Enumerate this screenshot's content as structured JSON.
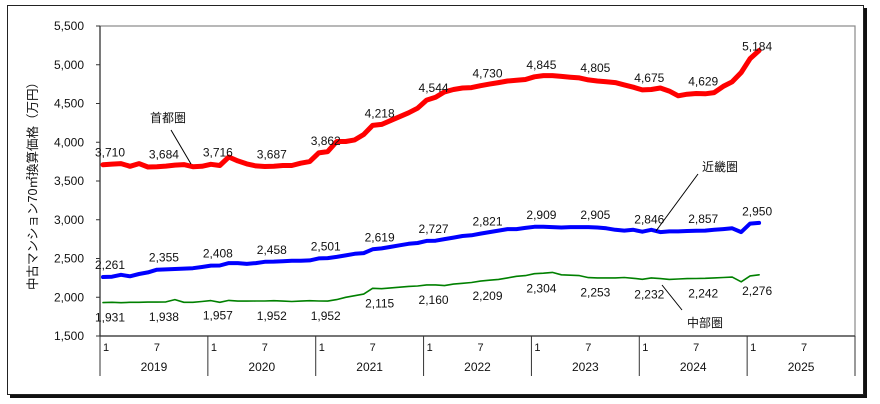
{
  "chart_data": {
    "type": "line",
    "ylabel": "中古マンション70㎡換算価格（万円）",
    "ylim": [
      1500,
      5500
    ],
    "yticks": [
      1500,
      2000,
      2500,
      3000,
      3500,
      4000,
      4500,
      5000,
      5500
    ],
    "ytick_labels": [
      "1,500",
      "2,000",
      "2,500",
      "3,000",
      "3,500",
      "4,000",
      "4,500",
      "5,000",
      "5,500"
    ],
    "x_start": "2019-01",
    "years": [
      "2019",
      "2020",
      "2021",
      "2022",
      "2023",
      "2024",
      "2025"
    ],
    "month_ticks": [
      "1",
      "7"
    ],
    "series": [
      {
        "name": "首都圏",
        "color": "#ff0000",
        "values": [
          3710,
          3718,
          3725,
          3690,
          3725,
          3680,
          3684,
          3692,
          3705,
          3712,
          3685,
          3690,
          3716,
          3700,
          3810,
          3760,
          3720,
          3695,
          3687,
          3690,
          3700,
          3700,
          3730,
          3750,
          3862,
          3880,
          4010,
          4010,
          4030,
          4100,
          4218,
          4230,
          4280,
          4330,
          4380,
          4440,
          4544,
          4580,
          4650,
          4680,
          4700,
          4705,
          4730,
          4750,
          4770,
          4790,
          4800,
          4810,
          4845,
          4860,
          4860,
          4850,
          4840,
          4830,
          4805,
          4790,
          4780,
          4770,
          4740,
          4710,
          4675,
          4680,
          4700,
          4660,
          4600,
          4620,
          4629,
          4625,
          4640,
          4720,
          4780,
          4900,
          5080,
          5184
        ],
        "labels": [
          {
            "month_index": 0,
            "text": "3,710"
          },
          {
            "month_index": 6,
            "text": "3,684"
          },
          {
            "month_index": 12,
            "text": "3,716"
          },
          {
            "month_index": 18,
            "text": "3,687"
          },
          {
            "month_index": 24,
            "text": "3,862"
          },
          {
            "month_index": 30,
            "text": "4,218"
          },
          {
            "month_index": 36,
            "text": "4,544"
          },
          {
            "month_index": 42,
            "text": "4,730"
          },
          {
            "month_index": 48,
            "text": "4,845"
          },
          {
            "month_index": 54,
            "text": "4,805"
          },
          {
            "month_index": 60,
            "text": "4,675"
          },
          {
            "month_index": 66,
            "text": "4,629"
          },
          {
            "month_index": 72,
            "text": "5,184"
          }
        ]
      },
      {
        "name": "近畿圏",
        "color": "#0000ff",
        "values": [
          2261,
          2265,
          2290,
          2270,
          2300,
          2320,
          2355,
          2360,
          2365,
          2370,
          2375,
          2390,
          2408,
          2410,
          2440,
          2440,
          2430,
          2440,
          2458,
          2460,
          2465,
          2470,
          2470,
          2475,
          2501,
          2505,
          2520,
          2540,
          2560,
          2570,
          2619,
          2630,
          2650,
          2670,
          2690,
          2700,
          2727,
          2730,
          2750,
          2770,
          2790,
          2800,
          2821,
          2840,
          2860,
          2880,
          2880,
          2895,
          2909,
          2910,
          2905,
          2900,
          2905,
          2905,
          2905,
          2900,
          2890,
          2870,
          2860,
          2870,
          2846,
          2870,
          2840,
          2850,
          2850,
          2855,
          2857,
          2860,
          2870,
          2880,
          2890,
          2840,
          2950,
          2960
        ],
        "labels": [
          {
            "month_index": 0,
            "text": "2,261"
          },
          {
            "month_index": 6,
            "text": "2,355"
          },
          {
            "month_index": 12,
            "text": "2,408"
          },
          {
            "month_index": 18,
            "text": "2,458"
          },
          {
            "month_index": 24,
            "text": "2,501"
          },
          {
            "month_index": 30,
            "text": "2,619"
          },
          {
            "month_index": 36,
            "text": "2,727"
          },
          {
            "month_index": 42,
            "text": "2,821"
          },
          {
            "month_index": 48,
            "text": "2,909"
          },
          {
            "month_index": 54,
            "text": "2,905"
          },
          {
            "month_index": 60,
            "text": "2,846"
          },
          {
            "month_index": 66,
            "text": "2,857"
          },
          {
            "month_index": 72,
            "text": "2,950"
          }
        ]
      },
      {
        "name": "中部圏",
        "color": "#008000",
        "values": [
          1931,
          1935,
          1930,
          1935,
          1935,
          1938,
          1938,
          1940,
          1970,
          1935,
          1935,
          1945,
          1957,
          1935,
          1960,
          1950,
          1950,
          1952,
          1952,
          1955,
          1950,
          1945,
          1950,
          1955,
          1952,
          1950,
          1970,
          2000,
          2020,
          2040,
          2115,
          2110,
          2120,
          2130,
          2140,
          2145,
          2160,
          2160,
          2150,
          2170,
          2180,
          2190,
          2209,
          2220,
          2230,
          2250,
          2270,
          2280,
          2304,
          2310,
          2320,
          2290,
          2285,
          2280,
          2253,
          2250,
          2250,
          2250,
          2255,
          2245,
          2232,
          2250,
          2240,
          2230,
          2235,
          2240,
          2242,
          2245,
          2250,
          2255,
          2260,
          2200,
          2276,
          2290
        ],
        "labels": [
          {
            "month_index": 0,
            "text": "1,931"
          },
          {
            "month_index": 6,
            "text": "1,938"
          },
          {
            "month_index": 12,
            "text": "1,957"
          },
          {
            "month_index": 18,
            "text": "1,952"
          },
          {
            "month_index": 24,
            "text": "1,952"
          },
          {
            "month_index": 30,
            "text": "2,115"
          },
          {
            "month_index": 36,
            "text": "2,160"
          },
          {
            "month_index": 42,
            "text": "2,209"
          },
          {
            "month_index": 48,
            "text": "2,304"
          },
          {
            "month_index": 54,
            "text": "2,253"
          },
          {
            "month_index": 60,
            "text": "2,232"
          },
          {
            "month_index": 66,
            "text": "2,242"
          },
          {
            "month_index": 72,
            "text": "2,276"
          }
        ]
      }
    ],
    "annotations": [
      "首都圏",
      "近畿圏",
      "中部圏"
    ]
  }
}
